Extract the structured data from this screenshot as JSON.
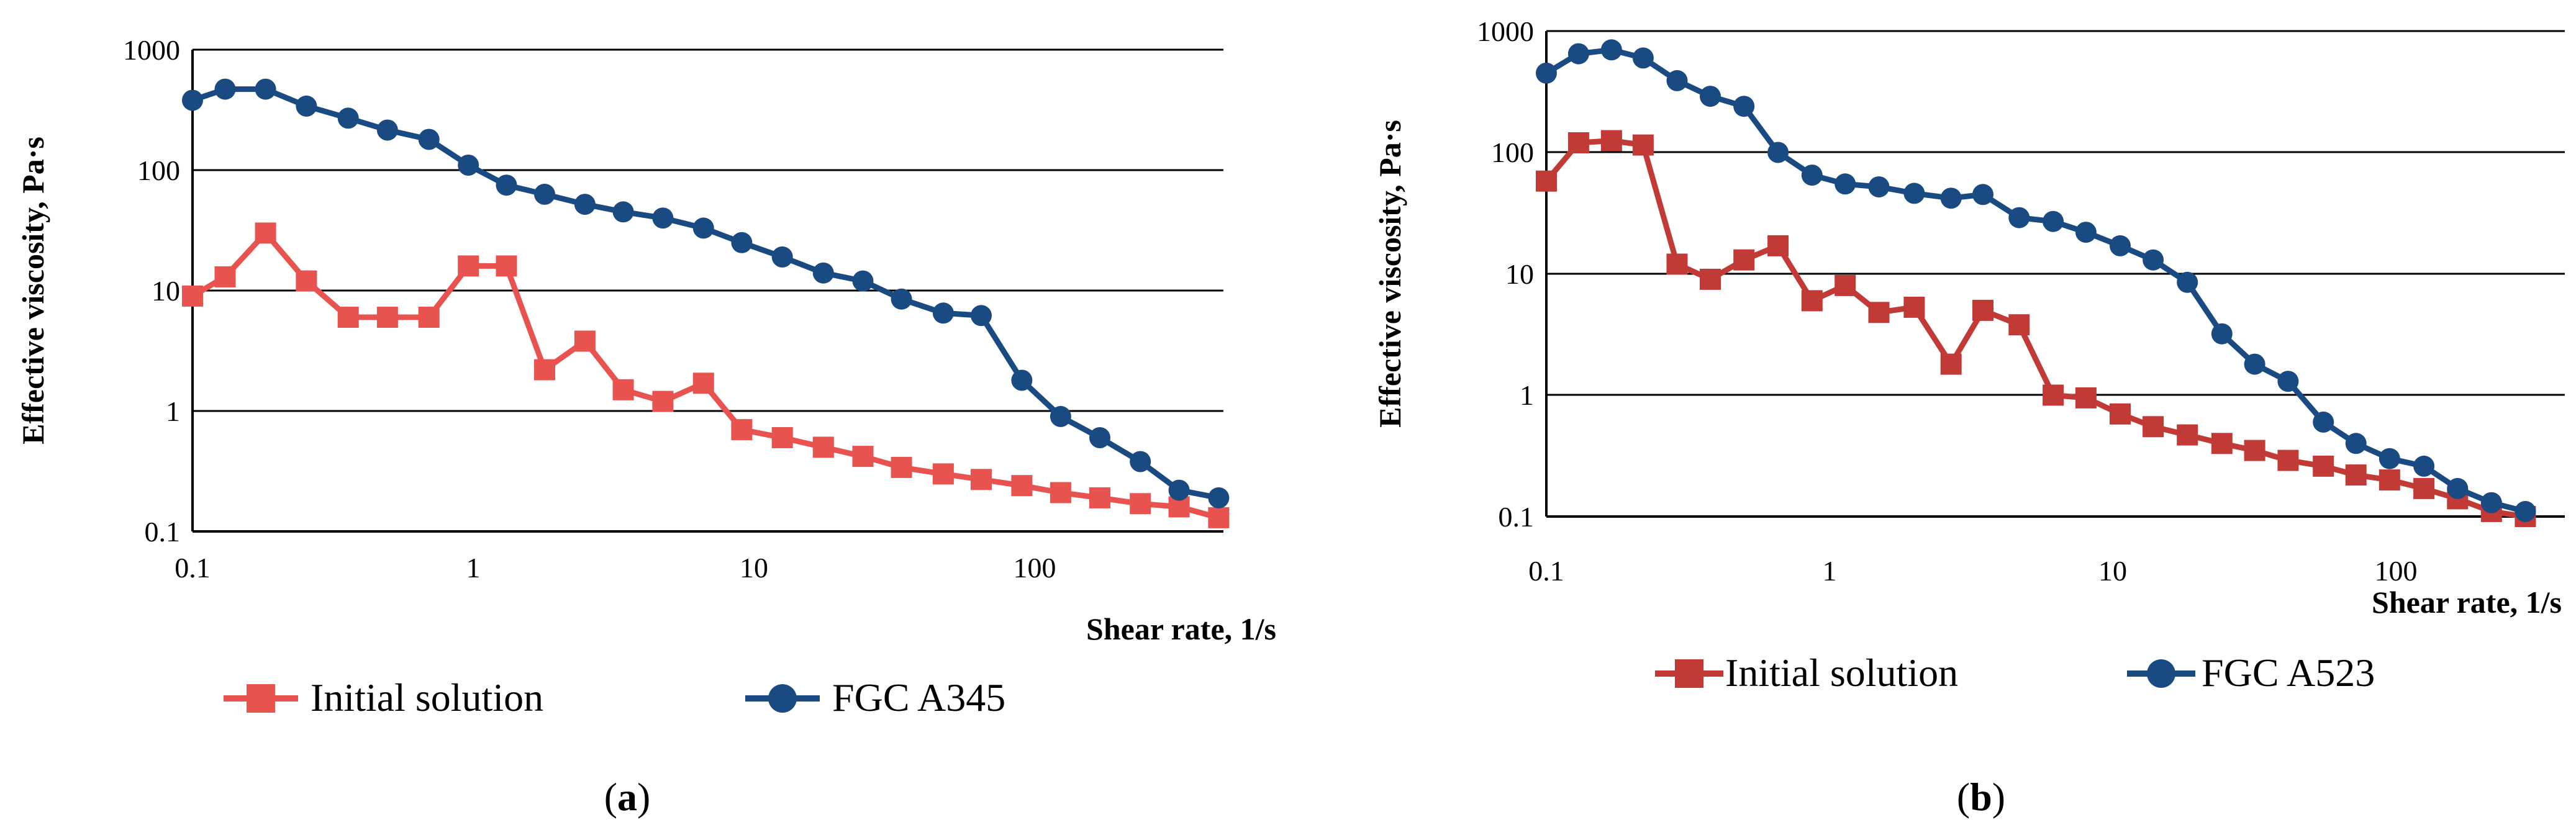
{
  "chart_data": [
    {
      "type": "line",
      "panel_label": "a",
      "xscale": "log",
      "yscale": "log",
      "xlim": [
        0.1,
        400
      ],
      "ylim": [
        0.1,
        1000
      ],
      "xticks": [
        "0.1",
        "1",
        "10",
        "100"
      ],
      "yticks": [
        "0.1",
        "1",
        "10",
        "100",
        "1000"
      ],
      "xlabel": "Shear rate, 1/s",
      "ylabel": "Effective viscosity, Pa·s",
      "grid": "horizontal",
      "legend_position": "bottom",
      "series": [
        {
          "name": "Initial solution",
          "marker": "square",
          "color": "#e8534f",
          "points": [
            [
              0.1,
              9
            ],
            [
              0.13,
              13
            ],
            [
              0.18,
              30
            ],
            [
              0.25,
              12
            ],
            [
              0.35,
              6
            ],
            [
              0.48,
              6
            ],
            [
              0.67,
              6
            ],
            [
              0.92,
              16
            ],
            [
              1.25,
              16
            ],
            [
              1.7,
              2.2
            ],
            [
              2.35,
              3.8
            ],
            [
              3.2,
              1.5
            ],
            [
              4.4,
              1.2
            ],
            [
              6.1,
              1.7
            ],
            [
              8.3,
              0.7
            ],
            [
              11.5,
              0.6
            ],
            [
              16,
              0.5
            ],
            [
              22,
              0.42
            ],
            [
              30,
              0.34
            ],
            [
              42,
              0.3
            ],
            [
              57,
              0.27
            ],
            [
              79,
              0.24
            ],
            [
              108,
              0.21
            ],
            [
              148,
              0.19
            ],
            [
              205,
              0.17
            ],
            [
              280,
              0.16
            ],
            [
              385,
              0.13
            ]
          ]
        },
        {
          "name": "FGC A345",
          "marker": "circle",
          "color": "#1a4a82",
          "points": [
            [
              0.1,
              380
            ],
            [
              0.13,
              470
            ],
            [
              0.18,
              470
            ],
            [
              0.25,
              340
            ],
            [
              0.35,
              270
            ],
            [
              0.48,
              215
            ],
            [
              0.67,
              180
            ],
            [
              0.92,
              110
            ],
            [
              1.25,
              75
            ],
            [
              1.7,
              63
            ],
            [
              2.35,
              52
            ],
            [
              3.2,
              45
            ],
            [
              4.4,
              40
            ],
            [
              6.1,
              33
            ],
            [
              8.3,
              25
            ],
            [
              11.5,
              19
            ],
            [
              16,
              14
            ],
            [
              22,
              12
            ],
            [
              30,
              8.5
            ],
            [
              42,
              6.5
            ],
            [
              57,
              6.2
            ],
            [
              79,
              1.8
            ],
            [
              108,
              0.9
            ],
            [
              148,
              0.6
            ],
            [
              205,
              0.38
            ],
            [
              280,
              0.22
            ],
            [
              385,
              0.19
            ]
          ]
        }
      ]
    },
    {
      "type": "line",
      "panel_label": "b",
      "xscale": "log",
      "yscale": "log",
      "xlim": [
        0.1,
        400
      ],
      "ylim": [
        0.1,
        1000
      ],
      "xticks": [
        "0.1",
        "1",
        "10",
        "100"
      ],
      "yticks": [
        "0.1",
        "1",
        "10",
        "100",
        "1000"
      ],
      "xlabel": "Shear rate, 1/s",
      "ylabel": "Effective viscosity, Pa·s",
      "grid": "horizontal",
      "legend_position": "bottom",
      "series": [
        {
          "name": "Initial solution",
          "marker": "square",
          "color": "#c23a35",
          "points": [
            [
              0.1,
              58
            ],
            [
              0.13,
              120
            ],
            [
              0.17,
              125
            ],
            [
              0.22,
              115
            ],
            [
              0.29,
              12
            ],
            [
              0.38,
              9
            ],
            [
              0.5,
              13
            ],
            [
              0.66,
              17
            ],
            [
              0.87,
              6
            ],
            [
              1.14,
              8
            ],
            [
              1.5,
              4.8
            ],
            [
              2,
              5.3
            ],
            [
              2.7,
              1.8
            ],
            [
              3.5,
              5
            ],
            [
              4.7,
              3.8
            ],
            [
              6.2,
              1
            ],
            [
              8.1,
              0.95
            ],
            [
              10.7,
              0.7
            ],
            [
              14,
              0.55
            ],
            [
              18.5,
              0.47
            ],
            [
              24.5,
              0.4
            ],
            [
              32,
              0.35
            ],
            [
              42,
              0.29
            ],
            [
              56,
              0.26
            ],
            [
              73,
              0.22
            ],
            [
              96,
              0.2
            ],
            [
              127,
              0.17
            ],
            [
              167,
              0.14
            ],
            [
              220,
              0.11
            ],
            [
              290,
              0.1
            ]
          ]
        },
        {
          "name": "FGC A523",
          "marker": "circle",
          "color": "#1a4a82",
          "points": [
            [
              0.1,
              450
            ],
            [
              0.13,
              650
            ],
            [
              0.17,
              700
            ],
            [
              0.22,
              600
            ],
            [
              0.29,
              390
            ],
            [
              0.38,
              290
            ],
            [
              0.5,
              240
            ],
            [
              0.66,
              100
            ],
            [
              0.87,
              65
            ],
            [
              1.14,
              55
            ],
            [
              1.5,
              52
            ],
            [
              2,
              46
            ],
            [
              2.7,
              42
            ],
            [
              3.5,
              45
            ],
            [
              4.7,
              29
            ],
            [
              6.2,
              27
            ],
            [
              8.1,
              22
            ],
            [
              10.7,
              17
            ],
            [
              14,
              13
            ],
            [
              18.5,
              8.5
            ],
            [
              24.5,
              3.2
            ],
            [
              32,
              1.8
            ],
            [
              42,
              1.3
            ],
            [
              56,
              0.6
            ],
            [
              73,
              0.4
            ],
            [
              96,
              0.3
            ],
            [
              127,
              0.26
            ],
            [
              167,
              0.17
            ],
            [
              220,
              0.13
            ],
            [
              290,
              0.11
            ]
          ]
        }
      ]
    }
  ]
}
